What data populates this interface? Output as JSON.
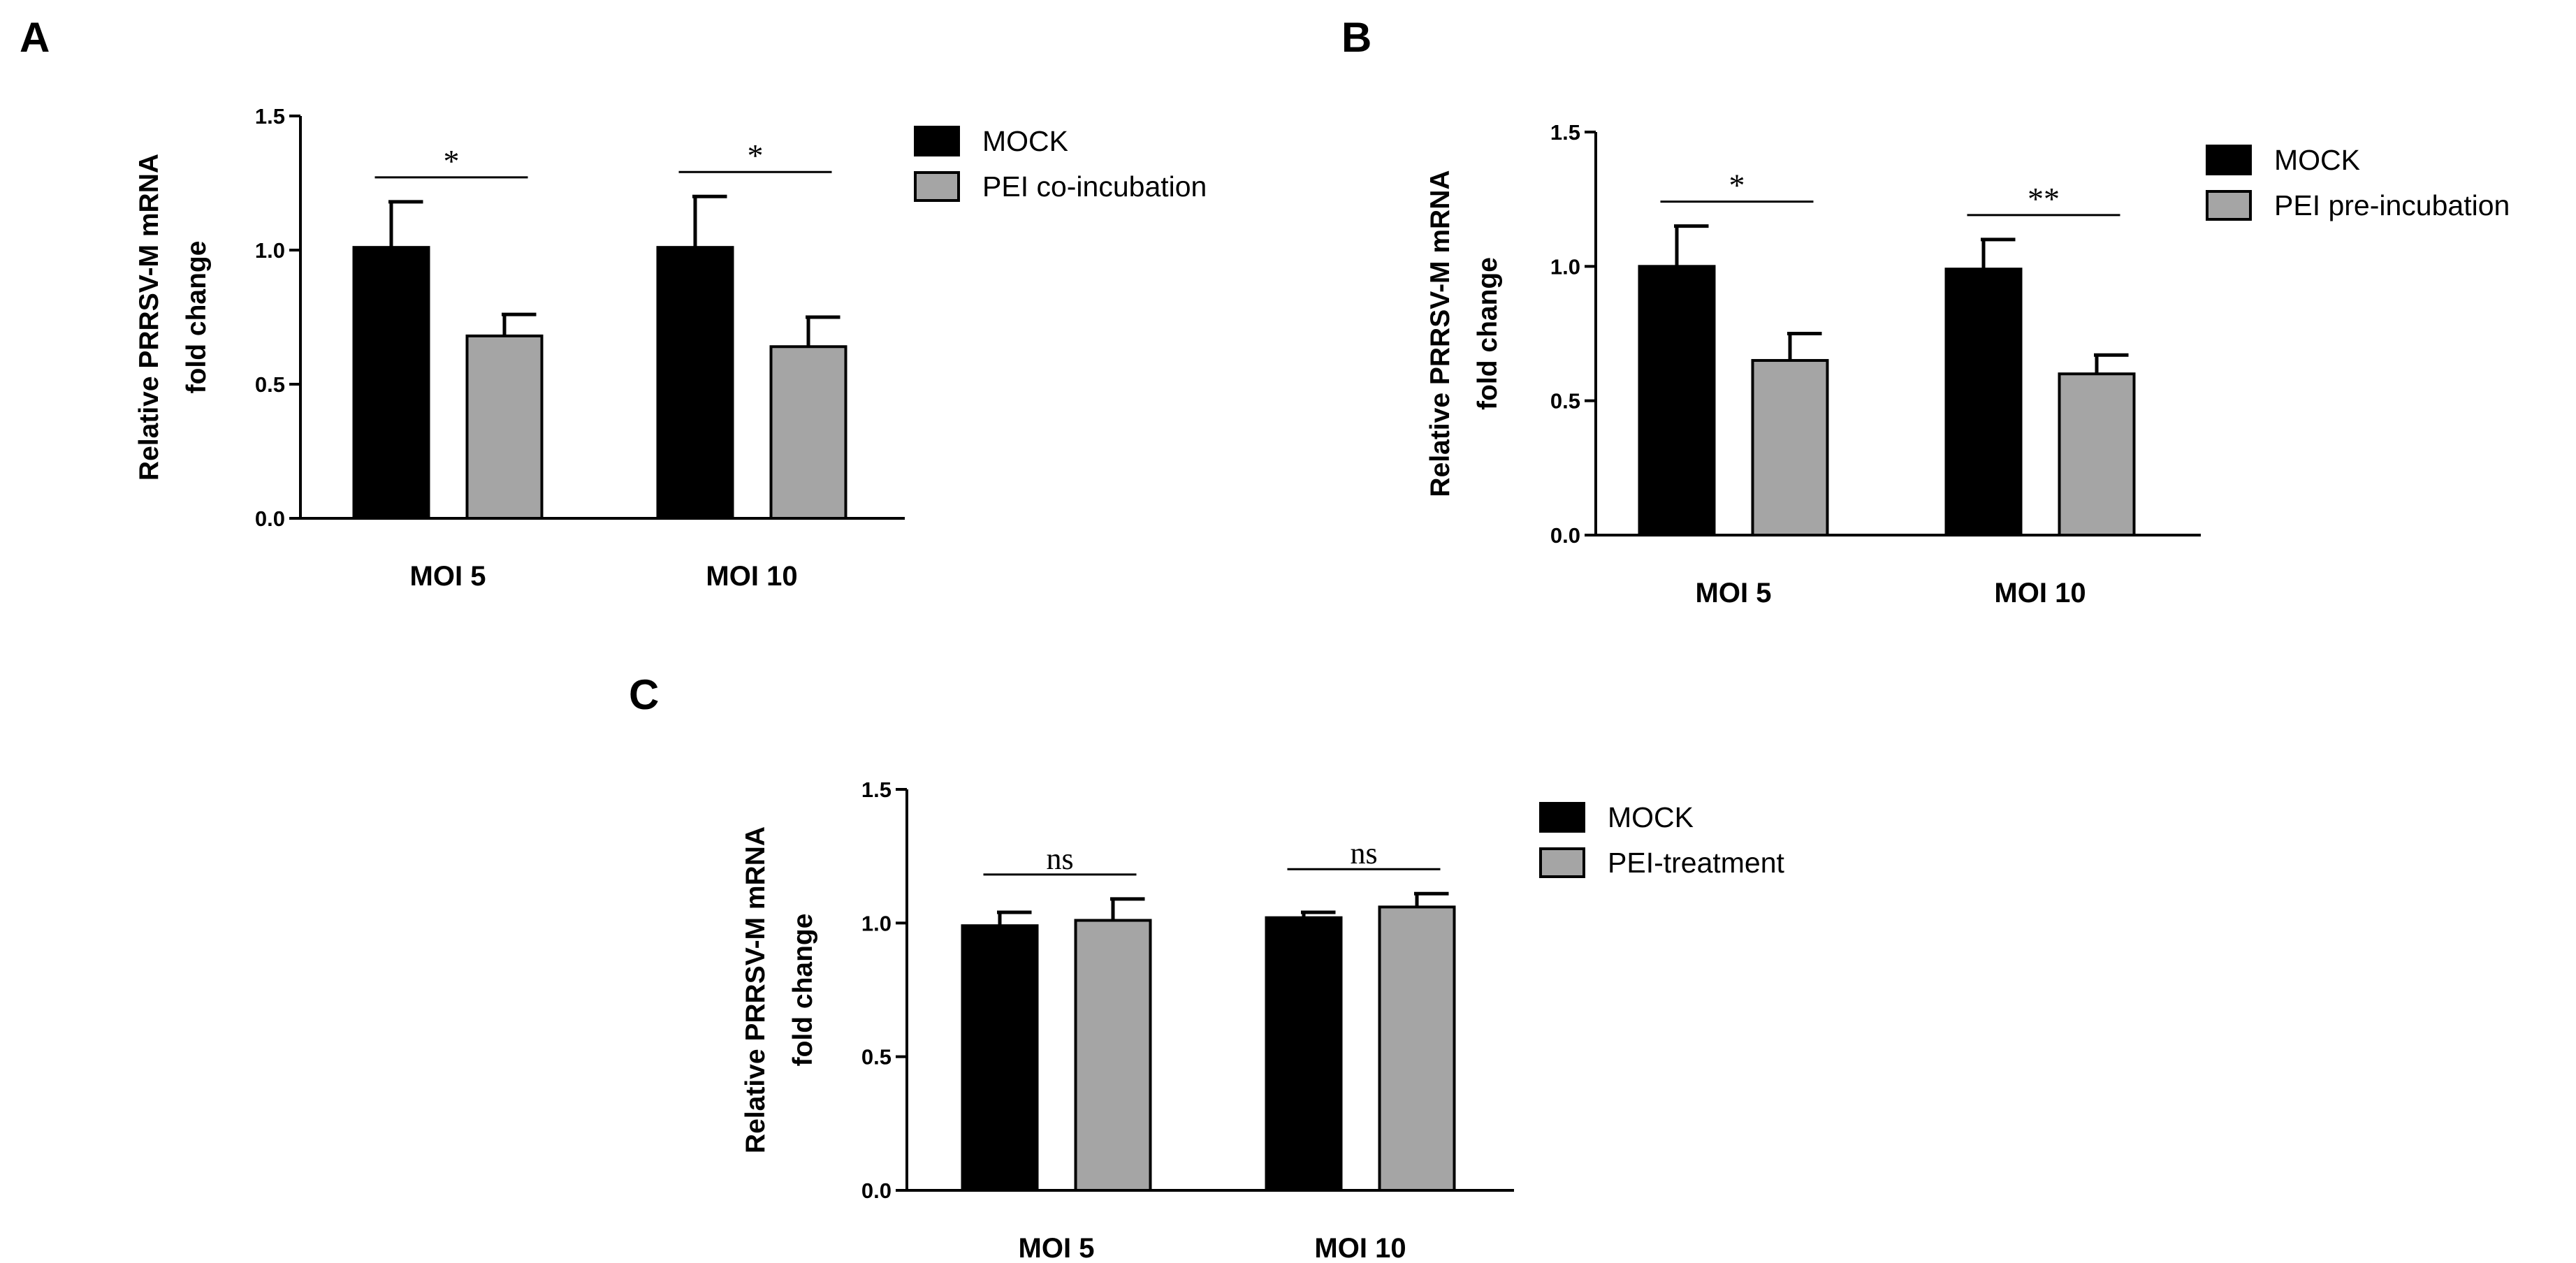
{
  "chart_data": [
    {
      "type": "bar",
      "panel": "A",
      "ylabel": [
        "Relative PRRSV-M mRNA",
        "fold change"
      ],
      "ylim": [
        0,
        1.5
      ],
      "yticks": [
        "0.0",
        "0.5",
        "1.0",
        "1.5"
      ],
      "categories": [
        "MOI 5",
        "MOI 10"
      ],
      "series": [
        {
          "name": "MOCK",
          "color": "#000000",
          "values": [
            1.01,
            1.01
          ],
          "errors": [
            0.17,
            0.19
          ]
        },
        {
          "name": "PEI co-incubation",
          "color": "#a5a5a5",
          "values": [
            0.68,
            0.64
          ],
          "errors": [
            0.08,
            0.11
          ]
        }
      ],
      "significance": [
        "*",
        "*"
      ]
    },
    {
      "type": "bar",
      "panel": "B",
      "ylabel": [
        "Relative PRRSV-M mRNA",
        "fold change"
      ],
      "ylim": [
        0,
        1.5
      ],
      "yticks": [
        "0.0",
        "0.5",
        "1.0",
        "1.5"
      ],
      "categories": [
        "MOI 5",
        "MOI 10"
      ],
      "series": [
        {
          "name": "MOCK",
          "color": "#000000",
          "values": [
            1.0,
            0.99
          ],
          "errors": [
            0.15,
            0.11
          ]
        },
        {
          "name": "PEI pre-incubation",
          "color": "#a5a5a5",
          "values": [
            0.65,
            0.6
          ],
          "errors": [
            0.1,
            0.07
          ]
        }
      ],
      "significance": [
        "*",
        "**"
      ]
    },
    {
      "type": "bar",
      "panel": "C",
      "ylabel": [
        "Relative PRRSV-M mRNA",
        "fold change"
      ],
      "ylim": [
        0,
        1.5
      ],
      "yticks": [
        "0.0",
        "0.5",
        "1.0",
        "1.5"
      ],
      "categories": [
        "MOI 5",
        "MOI 10"
      ],
      "series": [
        {
          "name": "MOCK",
          "color": "#000000",
          "values": [
            0.99,
            1.02
          ],
          "errors": [
            0.05,
            0.02
          ]
        },
        {
          "name": "PEI-treatment",
          "color": "#a5a5a5",
          "values": [
            1.01,
            1.06
          ],
          "errors": [
            0.08,
            0.05
          ]
        }
      ],
      "significance": [
        "ns",
        "ns"
      ]
    }
  ]
}
